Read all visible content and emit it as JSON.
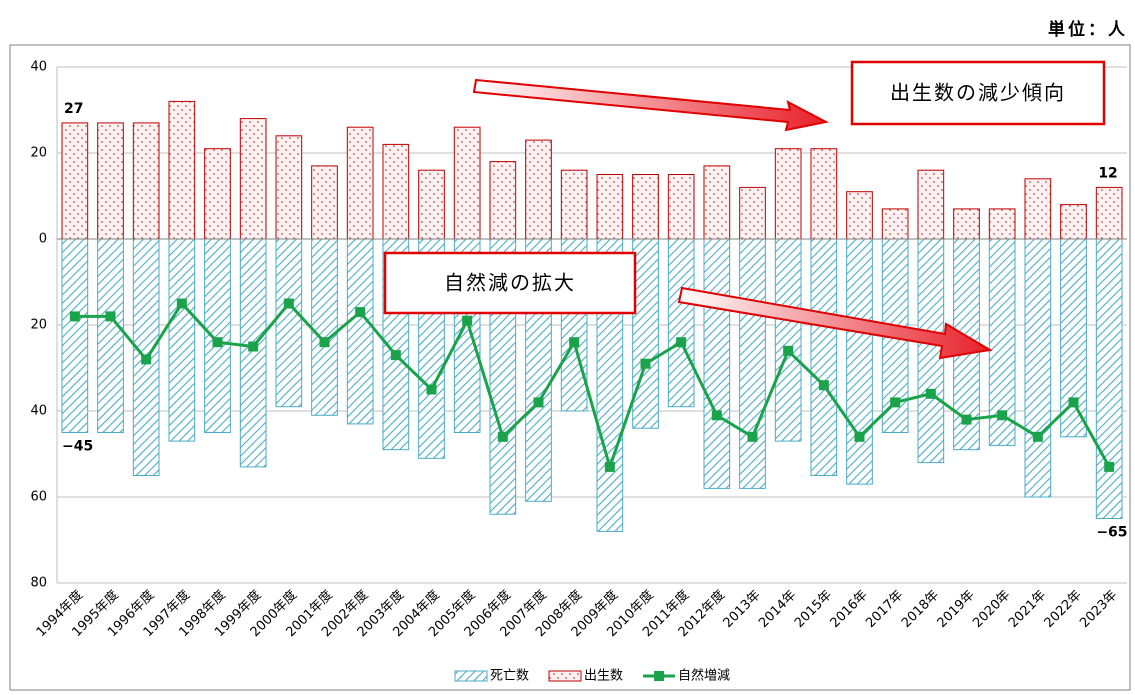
{
  "chart_data": {
    "type": "bar-line",
    "unit": "単位：人",
    "annotations": [
      "出生数の減少傾向",
      "自然減の拡大"
    ],
    "categories": [
      "1994年度",
      "1995年度",
      "1996年度",
      "1997年度",
      "1998年度",
      "1999年度",
      "2000年度",
      "2001年度",
      "2002年度",
      "2003年度",
      "2004年度",
      "2005年度",
      "2006年度",
      "2007年度",
      "2008年度",
      "2009年度",
      "2010年度",
      "2011年度",
      "2012年度",
      "2013年",
      "2014年",
      "2015年",
      "2016年",
      "2017年",
      "2018年",
      "2019年",
      "2020年",
      "2021年",
      "2022年",
      "2023年"
    ],
    "series": [
      {
        "name": "死亡数",
        "type": "bar",
        "color": "#4bacc6",
        "values": [
          -45,
          -45,
          -55,
          -47,
          -45,
          -53,
          -39,
          -41,
          -43,
          -49,
          -51,
          -45,
          -64,
          -61,
          -40,
          -68,
          -44,
          -39,
          -58,
          -58,
          -47,
          -55,
          -57,
          -45,
          -52,
          -49,
          -48,
          -60,
          -46,
          -65
        ],
        "value_labels": [
          "−45",
          null,
          null,
          null,
          null,
          null,
          null,
          null,
          null,
          null,
          null,
          null,
          null,
          null,
          null,
          null,
          null,
          null,
          null,
          null,
          null,
          null,
          null,
          null,
          null,
          null,
          null,
          null,
          null,
          "−65"
        ]
      },
      {
        "name": "出生数",
        "type": "bar",
        "color": "#c00000",
        "values": [
          27,
          27,
          27,
          32,
          21,
          28,
          24,
          17,
          26,
          22,
          16,
          26,
          18,
          23,
          16,
          15,
          15,
          15,
          17,
          12,
          21,
          21,
          11,
          7,
          16,
          7,
          7,
          14,
          8,
          12
        ],
        "value_labels": [
          "27",
          null,
          null,
          null,
          null,
          null,
          null,
          null,
          null,
          null,
          null,
          null,
          null,
          null,
          null,
          null,
          null,
          null,
          null,
          null,
          null,
          null,
          null,
          null,
          null,
          null,
          null,
          null,
          null,
          "12"
        ]
      },
      {
        "name": "自然増減",
        "type": "line",
        "color": "#1aa34a",
        "values": [
          -18,
          -18,
          -28,
          -15,
          -24,
          -25,
          -15,
          -24,
          -17,
          -27,
          -35,
          -19,
          -46,
          -38,
          -24,
          -53,
          -29,
          -24,
          -41,
          -46,
          -26,
          -34,
          -46,
          -38,
          -36,
          -42,
          -41,
          -46,
          -38,
          -53
        ]
      }
    ],
    "ylim": [
      -80,
      40
    ],
    "yticks": [
      40,
      20,
      0,
      {
        "value": -20,
        "label": "20"
      },
      {
        "value": -40,
        "label": "40"
      },
      {
        "value": -60,
        "label": "60"
      },
      {
        "value": -80,
        "label": "80"
      }
    ],
    "grid": true,
    "legend": "bottom"
  }
}
